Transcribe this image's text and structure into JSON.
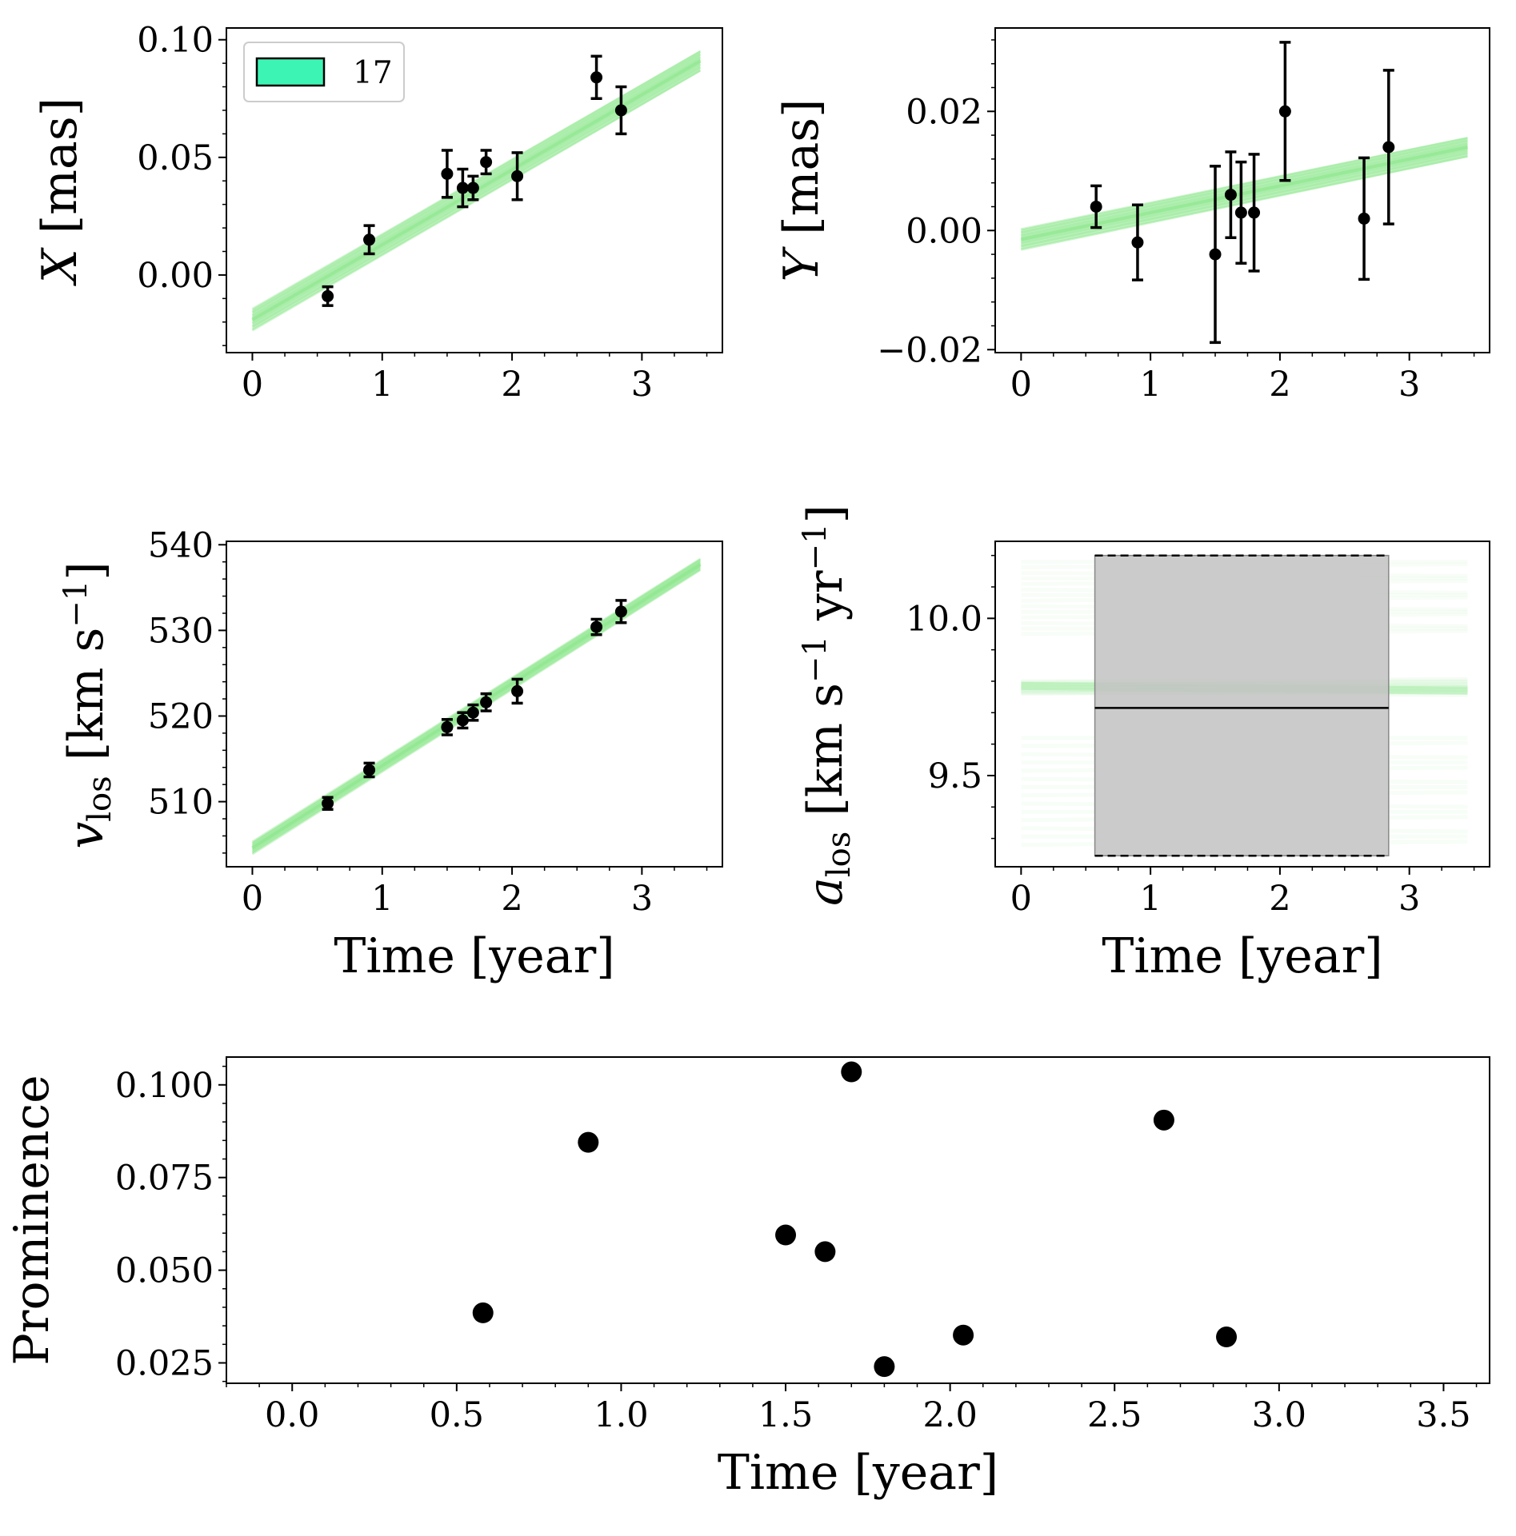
{
  "colors": {
    "fit": "#90e890",
    "legend_patch": "#3cf5b4",
    "points": "#000000",
    "band_fill": "#c2c2c2"
  },
  "chart_data": [
    {
      "id": "x",
      "type": "scatter",
      "ylabel_var": "X",
      "ylabel_unit": "[mas]",
      "xlabel": "",
      "xlim": [
        -0.2,
        3.62
      ],
      "ylim": [
        -0.033,
        0.105
      ],
      "xticks": [
        0,
        1,
        2,
        3
      ],
      "xtick_labels": [
        "0",
        "1",
        "2",
        "3"
      ],
      "yticks": [
        0.0,
        0.05,
        0.1
      ],
      "ytick_labels": [
        "0.00",
        "0.05",
        "0.10"
      ],
      "legend": {
        "label": "17",
        "location": "upper-left"
      },
      "fit_line": {
        "x": [
          0,
          3.45
        ],
        "y": [
          -0.019,
          0.091
        ],
        "spread": 0.0045
      },
      "points": [
        {
          "x": 0.58,
          "y": -0.009,
          "err": 0.004
        },
        {
          "x": 0.9,
          "y": 0.015,
          "err": 0.006
        },
        {
          "x": 1.5,
          "y": 0.043,
          "err": 0.01
        },
        {
          "x": 1.62,
          "y": 0.037,
          "err": 0.008
        },
        {
          "x": 1.7,
          "y": 0.037,
          "err": 0.005
        },
        {
          "x": 1.8,
          "y": 0.048,
          "err": 0.005
        },
        {
          "x": 2.04,
          "y": 0.042,
          "err": 0.01
        },
        {
          "x": 2.65,
          "y": 0.084,
          "err": 0.009
        },
        {
          "x": 2.84,
          "y": 0.07,
          "err": 0.01
        }
      ]
    },
    {
      "id": "y",
      "type": "scatter",
      "ylabel_var": "Y",
      "ylabel_unit": "[mas]",
      "xlabel": "",
      "xlim": [
        -0.2,
        3.62
      ],
      "ylim": [
        -0.0205,
        0.034
      ],
      "xticks": [
        0,
        1,
        2,
        3
      ],
      "xtick_labels": [
        "0",
        "1",
        "2",
        "3"
      ],
      "yticks": [
        -0.02,
        0.0,
        0.02
      ],
      "ytick_labels": [
        "−0.02",
        "0.00",
        "0.02"
      ],
      "fit_line": {
        "x": [
          0,
          3.45
        ],
        "y": [
          -0.0015,
          0.014
        ],
        "spread": 0.0017
      },
      "points": [
        {
          "x": 0.58,
          "y": 0.004,
          "err": 0.0035
        },
        {
          "x": 0.9,
          "y": -0.002,
          "err": 0.0063
        },
        {
          "x": 1.5,
          "y": -0.004,
          "err": 0.0148
        },
        {
          "x": 1.62,
          "y": 0.006,
          "err": 0.0072
        },
        {
          "x": 1.7,
          "y": 0.003,
          "err": 0.0085
        },
        {
          "x": 1.8,
          "y": 0.003,
          "err": 0.0098
        },
        {
          "x": 2.04,
          "y": 0.02,
          "err": 0.0116
        },
        {
          "x": 2.65,
          "y": 0.002,
          "err": 0.0102
        },
        {
          "x": 2.84,
          "y": 0.014,
          "err": 0.0129
        }
      ]
    },
    {
      "id": "vlos",
      "type": "scatter",
      "ylabel_var": "v",
      "ylabel_sub": "los",
      "ylabel_unit": "[km s",
      "ylabel_sup": "−1",
      "ylabel_close": "]",
      "xlabel": "Time [year]",
      "xlim": [
        -0.2,
        3.62
      ],
      "ylim": [
        502.4,
        540.4
      ],
      "xticks": [
        0,
        1,
        2,
        3
      ],
      "xtick_labels": [
        "0",
        "1",
        "2",
        "3"
      ],
      "yticks": [
        510,
        520,
        530,
        540
      ],
      "ytick_labels": [
        "510",
        "520",
        "530",
        "540"
      ],
      "fit_line": {
        "x": [
          0,
          3.45
        ],
        "y": [
          504.6,
          537.7
        ],
        "spread": 0.7
      },
      "points": [
        {
          "x": 0.58,
          "y": 509.8,
          "err": 0.7
        },
        {
          "x": 0.9,
          "y": 513.7,
          "err": 0.8
        },
        {
          "x": 1.5,
          "y": 518.7,
          "err": 0.9
        },
        {
          "x": 1.62,
          "y": 519.5,
          "err": 0.9
        },
        {
          "x": 1.7,
          "y": 520.4,
          "err": 0.9
        },
        {
          "x": 1.8,
          "y": 521.6,
          "err": 1.0
        },
        {
          "x": 2.04,
          "y": 522.9,
          "err": 1.4
        },
        {
          "x": 2.65,
          "y": 530.4,
          "err": 0.9
        },
        {
          "x": 2.84,
          "y": 532.2,
          "err": 1.3
        }
      ]
    },
    {
      "id": "alos",
      "type": "area",
      "ylabel_var": "a",
      "ylabel_sub": "los",
      "ylabel_unit": "[km s",
      "ylabel_sup": "−1",
      "ylabel_mid": " yr",
      "ylabel_sup2": "−1",
      "ylabel_close": "]",
      "xlabel": "Time [year]",
      "xlim": [
        -0.2,
        3.62
      ],
      "ylim": [
        9.21,
        10.245
      ],
      "xticks": [
        0,
        1,
        2,
        3
      ],
      "xtick_labels": [
        "0",
        "1",
        "2",
        "3"
      ],
      "yticks": [
        9.5,
        10.0
      ],
      "ytick_labels": [
        "9.5",
        "10.0"
      ],
      "band": {
        "x0": 0.57,
        "x1": 2.84,
        "y_low": 9.245,
        "y_high": 10.2,
        "mean": 9.715
      },
      "fit_lines": {
        "x": [
          0,
          3.45
        ],
        "clusters": [
          {
            "y0": 9.28,
            "y1": 9.62,
            "weight": 0.5
          },
          {
            "y0": 9.76,
            "y1": 9.8,
            "weight": 0.9
          },
          {
            "y0": 9.95,
            "y1": 10.18,
            "weight": 0.2
          }
        ]
      }
    },
    {
      "id": "prominence",
      "type": "scatter",
      "ylabel": "Prominence",
      "xlabel": "Time [year]",
      "xlim": [
        -0.2,
        3.64
      ],
      "ylim": [
        0.0195,
        0.1075
      ],
      "xticks": [
        0.0,
        0.5,
        1.0,
        1.5,
        2.0,
        2.5,
        3.0,
        3.5
      ],
      "xtick_labels": [
        "0.0",
        "0.5",
        "1.0",
        "1.5",
        "2.0",
        "2.5",
        "3.0",
        "3.5"
      ],
      "yticks": [
        0.025,
        0.05,
        0.075,
        0.1
      ],
      "ytick_labels": [
        "0.025",
        "0.050",
        "0.075",
        "0.100"
      ],
      "points": [
        {
          "x": 0.58,
          "y": 0.0385
        },
        {
          "x": 0.9,
          "y": 0.0845
        },
        {
          "x": 1.5,
          "y": 0.0595
        },
        {
          "x": 1.62,
          "y": 0.055
        },
        {
          "x": 1.7,
          "y": 0.1035
        },
        {
          "x": 1.8,
          "y": 0.024
        },
        {
          "x": 2.04,
          "y": 0.0325
        },
        {
          "x": 2.65,
          "y": 0.0905
        },
        {
          "x": 2.84,
          "y": 0.032
        }
      ]
    }
  ]
}
